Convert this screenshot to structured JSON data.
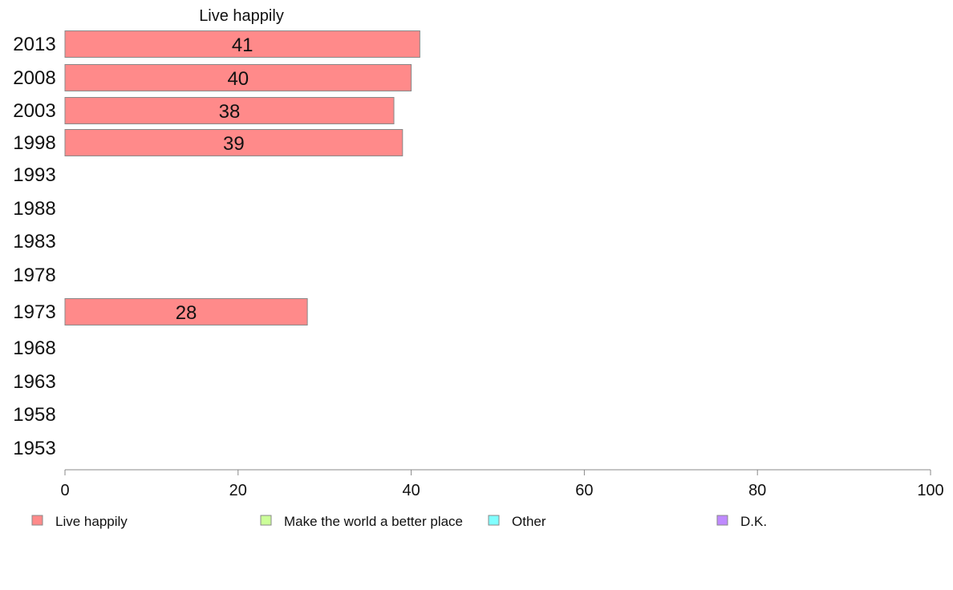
{
  "chart_data": {
    "type": "bar",
    "orientation": "horizontal",
    "panel_title": "Live happily",
    "categories": [
      "2013",
      "2008",
      "2003",
      "1998",
      "1993",
      "1988",
      "1983",
      "1978",
      "1973",
      "1968",
      "1963",
      "1958",
      "1953"
    ],
    "series": [
      {
        "name": "Live happily",
        "color": "#FF8A8A",
        "values": [
          41,
          40,
          38,
          39,
          null,
          null,
          null,
          null,
          28,
          null,
          null,
          null,
          null
        ]
      }
    ],
    "xlim": [
      0,
      100
    ],
    "xticks": [
      0,
      20,
      40,
      60,
      80,
      100
    ],
    "grid": false,
    "legend_position": "bottom",
    "legend": [
      {
        "label": "Live happily",
        "color": "#FF8A8A"
      },
      {
        "label": "Make the world a better place",
        "color": "#CCFF99"
      },
      {
        "label": "Other",
        "color": "#80FFFF"
      },
      {
        "label": "D.K.",
        "color": "#BF8AFF"
      }
    ]
  }
}
